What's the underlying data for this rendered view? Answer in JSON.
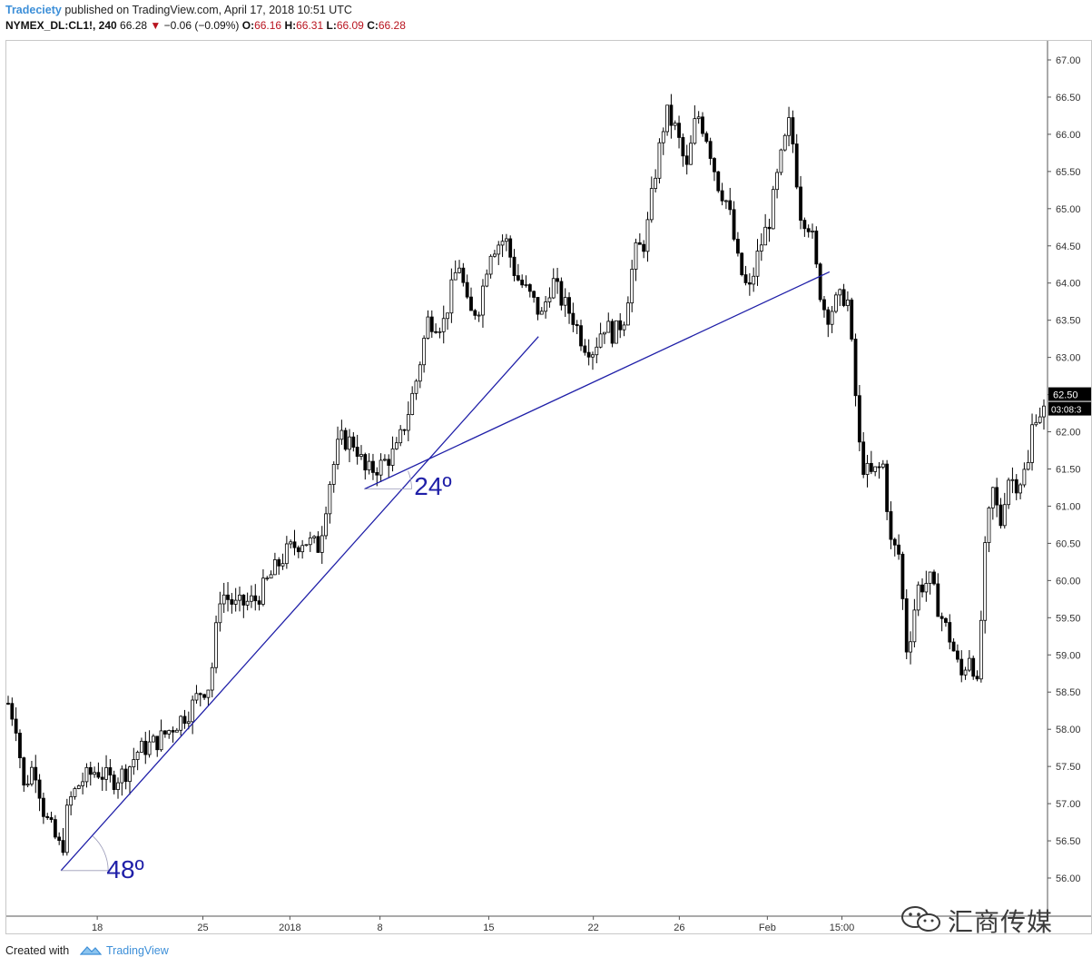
{
  "header": {
    "author": "Tradeciety",
    "published": " published on TradingView.com, April 17, 2018 10:51 UTC",
    "symbol": "NYMEX_DL:CL1!, 240",
    "last": "66.28",
    "down_arrow": "▼",
    "change": "−0.06 (−0.09%)",
    "o_label": "O:",
    "o_val": "66.16",
    "h_label": "H:",
    "h_val": "66.31",
    "l_label": "L:",
    "l_val": "66.09",
    "c_label": "C:",
    "c_val": "66.28"
  },
  "footer": {
    "created_with": "Created with",
    "brand": "TradingView",
    "watermark": "汇商传媒"
  },
  "colors": {
    "line": "#1f1fa8",
    "candle": "#000000",
    "price_badge": "#000000",
    "link": "#3d8fd8",
    "down": "#b8141f"
  },
  "chart_data": {
    "type": "candlestick",
    "y_axis": {
      "min": 55.7,
      "max": 67.25,
      "tick_labels": [
        "56.00",
        "56.50",
        "57.00",
        "57.50",
        "58.00",
        "58.50",
        "59.00",
        "59.50",
        "60.00",
        "60.50",
        "61.00",
        "61.50",
        "62.00",
        "62.50",
        "63.00",
        "63.50",
        "64.00",
        "64.50",
        "65.00",
        "65.50",
        "66.00",
        "66.50",
        "67.00"
      ]
    },
    "x_axis": {
      "tick_labels": [
        "18",
        "25",
        "2018",
        "8",
        "15",
        "22",
        "26",
        "Feb",
        "15:00"
      ]
    },
    "current_price": "62.50",
    "countdown": "03:08:3",
    "close_path": [
      [
        0.0,
        58.35
      ],
      [
        0.008,
        58.05
      ],
      [
        0.015,
        57.2
      ],
      [
        0.025,
        57.55
      ],
      [
        0.035,
        56.85
      ],
      [
        0.045,
        56.55
      ],
      [
        0.052,
        56.35
      ],
      [
        0.058,
        57.0
      ],
      [
        0.07,
        57.3
      ],
      [
        0.085,
        57.45
      ],
      [
        0.1,
        57.3
      ],
      [
        0.115,
        57.45
      ],
      [
        0.125,
        57.7
      ],
      [
        0.145,
        57.85
      ],
      [
        0.16,
        58.05
      ],
      [
        0.175,
        58.25
      ],
      [
        0.185,
        58.5
      ],
      [
        0.195,
        58.6
      ],
      [
        0.205,
        59.85
      ],
      [
        0.22,
        59.65
      ],
      [
        0.24,
        59.75
      ],
      [
        0.255,
        60.1
      ],
      [
        0.27,
        60.4
      ],
      [
        0.285,
        60.55
      ],
      [
        0.3,
        60.45
      ],
      [
        0.31,
        61.3
      ],
      [
        0.32,
        61.9
      ],
      [
        0.335,
        61.85
      ],
      [
        0.345,
        61.45
      ],
      [
        0.36,
        61.55
      ],
      [
        0.375,
        61.75
      ],
      [
        0.385,
        62.2
      ],
      [
        0.395,
        62.75
      ],
      [
        0.405,
        63.5
      ],
      [
        0.42,
        63.45
      ],
      [
        0.435,
        64.3
      ],
      [
        0.445,
        63.55
      ],
      [
        0.455,
        63.7
      ],
      [
        0.465,
        64.45
      ],
      [
        0.48,
        64.6
      ],
      [
        0.49,
        64.1
      ],
      [
        0.505,
        63.8
      ],
      [
        0.515,
        63.55
      ],
      [
        0.525,
        64.05
      ],
      [
        0.535,
        63.75
      ],
      [
        0.545,
        63.55
      ],
      [
        0.555,
        63.2
      ],
      [
        0.565,
        63.1
      ],
      [
        0.575,
        63.45
      ],
      [
        0.585,
        63.3
      ],
      [
        0.595,
        63.55
      ],
      [
        0.605,
        64.4
      ],
      [
        0.615,
        64.55
      ],
      [
        0.625,
        65.5
      ],
      [
        0.635,
        66.3
      ],
      [
        0.645,
        66.05
      ],
      [
        0.655,
        65.5
      ],
      [
        0.665,
        66.3
      ],
      [
        0.675,
        65.95
      ],
      [
        0.685,
        65.35
      ],
      [
        0.695,
        65.05
      ],
      [
        0.705,
        64.25
      ],
      [
        0.715,
        63.85
      ],
      [
        0.725,
        64.45
      ],
      [
        0.735,
        64.85
      ],
      [
        0.745,
        65.6
      ],
      [
        0.755,
        66.2
      ],
      [
        0.765,
        64.95
      ],
      [
        0.775,
        64.75
      ],
      [
        0.782,
        64.0
      ],
      [
        0.79,
        63.55
      ],
      [
        0.8,
        63.75
      ],
      [
        0.81,
        63.85
      ],
      [
        0.817,
        62.7
      ],
      [
        0.823,
        61.6
      ],
      [
        0.832,
        61.4
      ],
      [
        0.845,
        61.55
      ],
      [
        0.852,
        60.5
      ],
      [
        0.86,
        60.35
      ],
      [
        0.868,
        59.0
      ],
      [
        0.878,
        59.9
      ],
      [
        0.89,
        60.0
      ],
      [
        0.9,
        59.55
      ],
      [
        0.91,
        59.2
      ],
      [
        0.92,
        58.7
      ],
      [
        0.93,
        59.1
      ],
      [
        0.935,
        58.4
      ],
      [
        0.943,
        60.35
      ],
      [
        0.95,
        61.25
      ],
      [
        0.958,
        60.75
      ],
      [
        0.965,
        61.4
      ],
      [
        0.975,
        61.3
      ],
      [
        0.985,
        61.55
      ],
      [
        0.99,
        62.25
      ],
      [
        1.0,
        62.28
      ]
    ],
    "trendlines": [
      {
        "from": [
          0.051,
          56.1
        ],
        "to": [
          0.512,
          63.28
        ]
      },
      {
        "from": [
          0.344,
          61.23
        ],
        "to": [
          0.793,
          64.15
        ]
      }
    ],
    "annotations": [
      {
        "text": "48º",
        "x": 0.095,
        "y": 56.0
      },
      {
        "text": "24º",
        "x": 0.392,
        "y": 61.15
      }
    ]
  }
}
